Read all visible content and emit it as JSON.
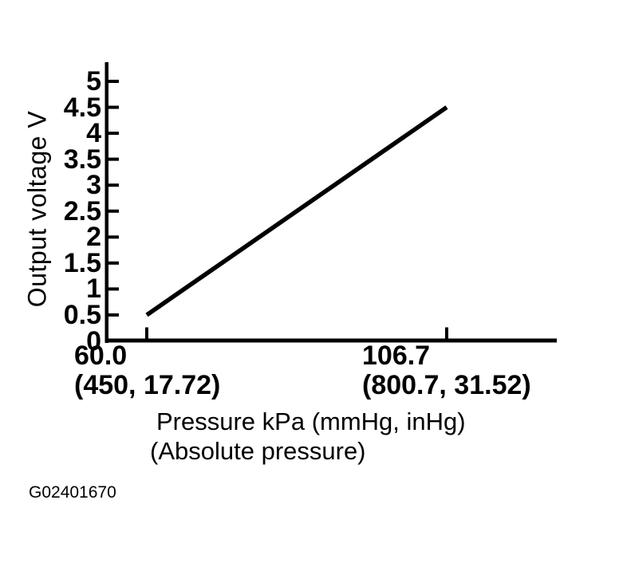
{
  "page": {
    "background_color": "#ffffff",
    "ink_color": "#000000"
  },
  "figure": {
    "code": "G02401670"
  },
  "chart_data": {
    "type": "line",
    "title": "",
    "ylabel": "Output voltage V",
    "xlabel_line1": "Pressure kPa (mmHg, inHg)",
    "xlabel_line2": "(Absolute pressure)",
    "grid": false,
    "legend": false,
    "ylim": [
      0,
      5
    ],
    "xlim": [
      53.5,
      124.0
    ],
    "y_ticks": [
      {
        "label": "0",
        "value": 0
      },
      {
        "label": "0.5",
        "value": 0.5
      },
      {
        "label": "1",
        "value": 1
      },
      {
        "label": "1.5",
        "value": 1.5
      },
      {
        "label": "2",
        "value": 2
      },
      {
        "label": "2.5",
        "value": 2.5
      },
      {
        "label": "3",
        "value": 3
      },
      {
        "label": "3.5",
        "value": 3.5
      },
      {
        "label": "4",
        "value": 4
      },
      {
        "label": "4.5",
        "value": 4.5
      },
      {
        "label": "5",
        "value": 5
      }
    ],
    "x_ticks": [
      {
        "label": "60.0",
        "sublabel": "(450, 17.72)",
        "value": 60.0
      },
      {
        "label": "106.7",
        "sublabel": "(800.7, 31.52)",
        "value": 106.7
      }
    ],
    "series": [
      {
        "name": "sensor-output-line",
        "x": [
          60.0,
          106.7
        ],
        "y": [
          0.5,
          4.5
        ]
      }
    ]
  }
}
